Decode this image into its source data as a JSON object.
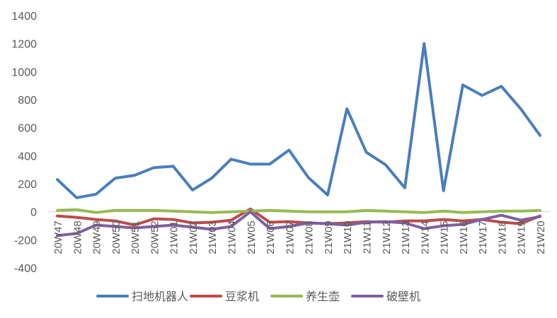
{
  "chart_data": {
    "type": "line",
    "title": "",
    "xlabel": "",
    "ylabel": "",
    "ylim": [
      -400,
      1400
    ],
    "yticks": [
      -400,
      -200,
      0,
      200,
      400,
      600,
      800,
      1000,
      1200,
      1400
    ],
    "ytick_labels": [
      "-400",
      "-200",
      "0",
      "200",
      "400",
      "600",
      "800",
      "1000",
      "1200",
      "1400"
    ],
    "grid": false,
    "legend_position": "bottom",
    "categories": [
      "20W47",
      "20W48",
      "20W49",
      "20W50",
      "20W51",
      "20W52",
      "21W01",
      "21W02",
      "21W03",
      "21W04",
      "21W05",
      "21W06",
      "21W07",
      "21W08",
      "21W09",
      "21W10",
      "21W11",
      "21W12",
      "21W13",
      "21W14",
      "21W15",
      "21W16",
      "21W17",
      "21W18",
      "21W19",
      "21W20"
    ],
    "series": [
      {
        "name": "扫地机器人",
        "color": "#4a7ebb",
        "values": [
          230,
          100,
          125,
          240,
          260,
          315,
          325,
          155,
          240,
          375,
          340,
          340,
          440,
          245,
          120,
          735,
          425,
          335,
          170,
          1200,
          150,
          905,
          830,
          895,
          735,
          545
        ]
      },
      {
        "name": "豆浆机",
        "color": "#be4b48",
        "values": [
          -30,
          -40,
          -55,
          -65,
          -95,
          -50,
          -55,
          -80,
          -75,
          -60,
          20,
          -75,
          -70,
          -80,
          -85,
          -80,
          -70,
          -75,
          -65,
          -65,
          -55,
          -65,
          -55,
          -75,
          -85,
          -30
        ]
      },
      {
        "name": "养生壶",
        "color": "#98b954",
        "values": [
          10,
          15,
          -5,
          10,
          10,
          10,
          5,
          0,
          -5,
          0,
          5,
          10,
          5,
          0,
          0,
          0,
          10,
          5,
          0,
          -5,
          5,
          -5,
          0,
          5,
          5,
          10
        ]
      },
      {
        "name": "破壁机",
        "color": "#7d60a0",
        "values": [
          -170,
          -155,
          -95,
          -105,
          -115,
          -105,
          -95,
          -110,
          -125,
          -105,
          0,
          -120,
          -105,
          -80,
          -85,
          -95,
          -75,
          -70,
          -80,
          -120,
          -100,
          -90,
          -55,
          -25,
          -60,
          -35
        ]
      }
    ]
  }
}
